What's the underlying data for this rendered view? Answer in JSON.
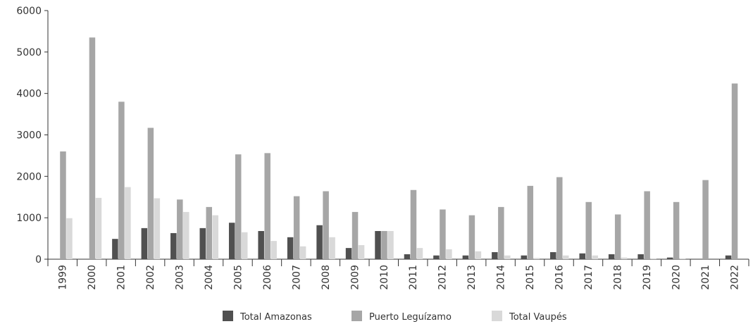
{
  "chart_data": {
    "type": "bar",
    "categories": [
      "1999",
      "2000",
      "2001",
      "2002",
      "2003",
      "2004",
      "2005",
      "2006",
      "2007",
      "2008",
      "2009",
      "2010",
      "2011",
      "2012",
      "2013",
      "2014",
      "2015",
      "2016",
      "2017",
      "2018",
      "2019",
      "2020",
      "2021",
      "2022"
    ],
    "series": [
      {
        "name": "Total Amazonas",
        "color": "#505050",
        "values": [
          0,
          0,
          490,
          750,
          630,
          750,
          880,
          680,
          530,
          820,
          270,
          680,
          120,
          90,
          90,
          170,
          90,
          170,
          140,
          120,
          120,
          40,
          0,
          90
        ]
      },
      {
        "name": "Puerto Leguízamo",
        "color": "#a6a6a6",
        "values": [
          2600,
          5350,
          3800,
          3170,
          1440,
          1260,
          2530,
          2560,
          1520,
          1640,
          1140,
          680,
          1670,
          1200,
          1060,
          1260,
          1770,
          1980,
          1380,
          1080,
          1640,
          1380,
          1910,
          4240
        ]
      },
      {
        "name": "Total Vaupés",
        "color": "#d9d9d9",
        "values": [
          990,
          1480,
          1740,
          1470,
          1140,
          1060,
          650,
          440,
          310,
          530,
          340,
          680,
          270,
          240,
          190,
          90,
          30,
          90,
          90,
          40,
          20,
          20,
          0,
          0
        ]
      }
    ],
    "ylim": [
      0,
      6000
    ],
    "yticks": [
      0,
      1000,
      2000,
      3000,
      4000,
      5000,
      6000
    ],
    "legend_position": "bottom",
    "grid": false
  }
}
